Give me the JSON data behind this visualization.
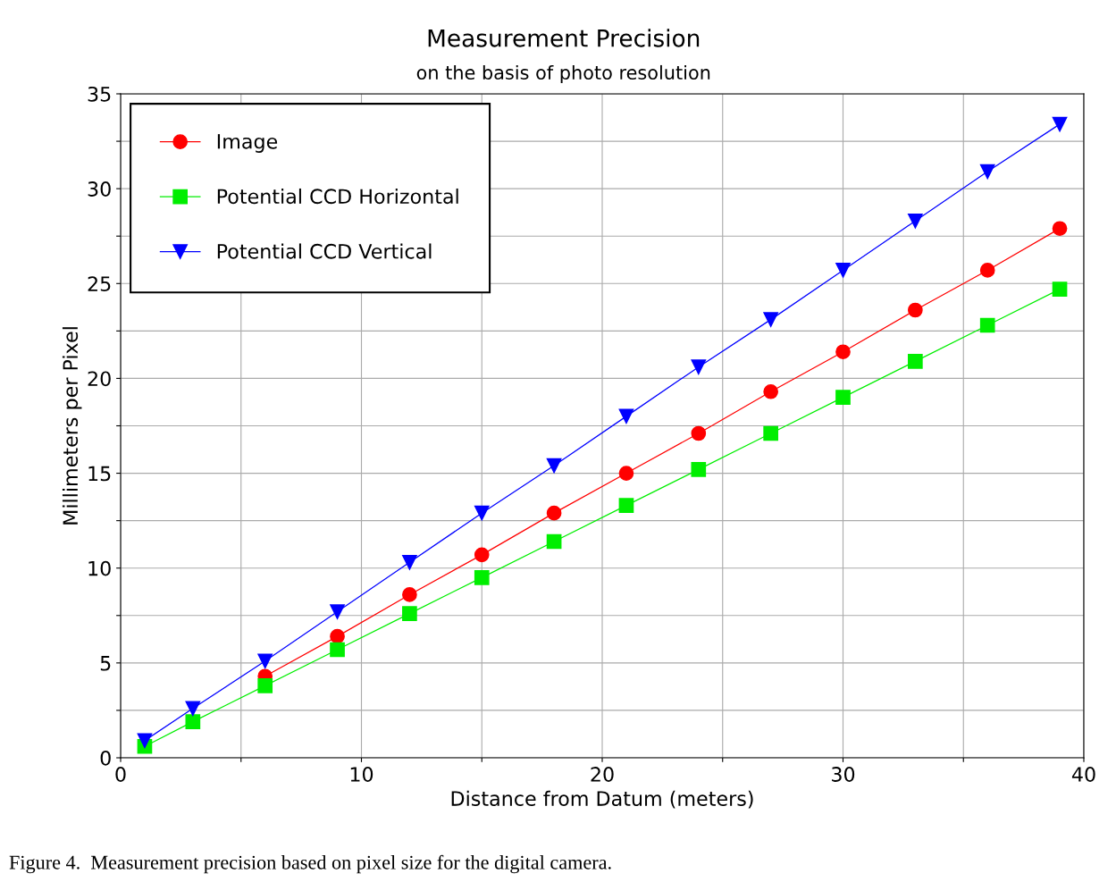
{
  "chart_data": {
    "type": "line",
    "title": "Measurement Precision",
    "subtitle": "on the basis of photo resolution",
    "xlabel": "Distance from Datum (meters)",
    "ylabel": "Millimeters per Pixel",
    "x": [
      1,
      3,
      6,
      9,
      12,
      15,
      18,
      21,
      24,
      27,
      30,
      33,
      36,
      39
    ],
    "series": [
      {
        "name": "Image",
        "color": "#ff0000",
        "marker": "circle",
        "values": [
          null,
          null,
          4.3,
          6.4,
          8.6,
          10.7,
          12.9,
          15.0,
          17.1,
          19.3,
          21.4,
          23.6,
          25.7,
          27.9
        ]
      },
      {
        "name": "Potential CCD Horizontal",
        "color": "#00ee00",
        "marker": "square",
        "values": [
          0.6,
          1.9,
          3.8,
          5.7,
          7.6,
          9.5,
          11.4,
          13.3,
          15.2,
          17.1,
          19.0,
          20.9,
          22.8,
          24.7
        ]
      },
      {
        "name": "Potential CCD Vertical",
        "color": "#0000ff",
        "marker": "triangle",
        "values": [
          0.9,
          2.6,
          5.1,
          7.7,
          10.3,
          12.9,
          15.4,
          18.0,
          20.6,
          23.1,
          25.7,
          28.3,
          30.9,
          33.4
        ]
      }
    ],
    "xlim": [
      0,
      40
    ],
    "xticks": [
      0,
      {
        "value": 5,
        "label": null
      },
      10,
      {
        "value": 15,
        "label": null
      },
      20,
      {
        "value": 25,
        "label": null
      },
      30,
      {
        "value": 35,
        "label": null
      },
      40
    ],
    "ylim": [
      0,
      35
    ],
    "yticks": [
      0,
      {
        "value": 2.5,
        "label": null
      },
      5,
      {
        "value": 7.5,
        "label": null
      },
      10,
      {
        "value": 12.5,
        "label": null
      },
      15,
      {
        "value": 17.5,
        "label": null
      },
      20,
      {
        "value": 22.5,
        "label": null
      },
      25,
      {
        "value": 27.5,
        "label": null
      },
      30,
      {
        "value": 32.5,
        "label": null
      },
      35
    ],
    "grid": true,
    "legend": "top left",
    "line_style": "solid",
    "annotations": [
      "Figure 4.  Measurement precision based on pixel size for the digital camera."
    ]
  }
}
